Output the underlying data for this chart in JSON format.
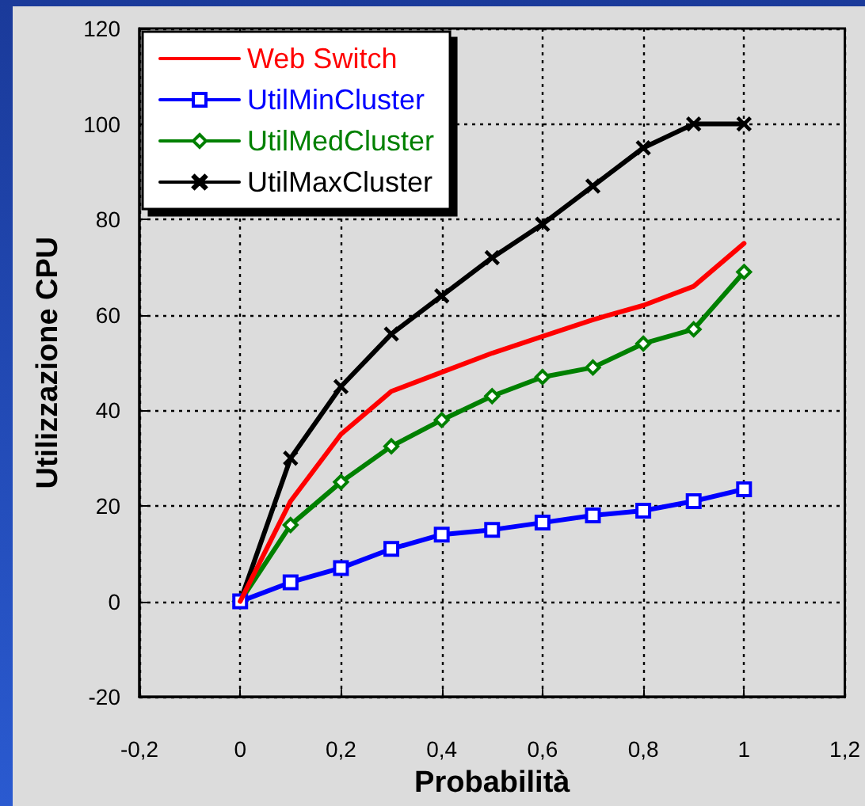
{
  "chart_data": {
    "type": "line",
    "xlabel": "Probabilità",
    "ylabel": "Utilizzazione CPU",
    "x": [
      0,
      0.1,
      0.2,
      0.3,
      0.4,
      0.5,
      0.6,
      0.7,
      0.8,
      0.9,
      1
    ],
    "series": [
      {
        "name": "Web Switch",
        "color": "#ff0000",
        "marker": "none",
        "values": [
          0,
          21,
          35,
          44,
          48,
          52,
          55.5,
          59,
          62,
          66,
          75
        ]
      },
      {
        "name": "UtilMinCluster",
        "color": "#0000ff",
        "marker": "square",
        "values": [
          0,
          4,
          7,
          11,
          14,
          15,
          16.5,
          18,
          19,
          21,
          23.5
        ]
      },
      {
        "name": "UtilMedCluster",
        "color": "#008000",
        "marker": "diamond",
        "values": [
          0,
          16,
          25,
          32.5,
          38,
          43,
          47,
          49,
          54,
          57,
          69
        ]
      },
      {
        "name": "UtilMaxCluster",
        "color": "#000000",
        "marker": "cross",
        "values": [
          0,
          30,
          45,
          56,
          64,
          72,
          79,
          87,
          95,
          100,
          100
        ]
      }
    ],
    "xlim": [
      -0.2,
      1.2
    ],
    "xticks": [
      {
        "value": -0.2,
        "label": "-0,2"
      },
      0,
      {
        "value": 0.2,
        "label": "0,2"
      },
      {
        "value": 0.4,
        "label": "0,4"
      },
      {
        "value": 0.6,
        "label": "0,6"
      },
      {
        "value": 0.8,
        "label": "0,8"
      },
      1,
      {
        "value": 1.2,
        "label": "1,2"
      }
    ],
    "ylim": [
      -20,
      120
    ],
    "yticks": [
      -20,
      0,
      20,
      40,
      60,
      80,
      100,
      120
    ],
    "grid": true,
    "legend": "top left",
    "line_style": "solid"
  }
}
